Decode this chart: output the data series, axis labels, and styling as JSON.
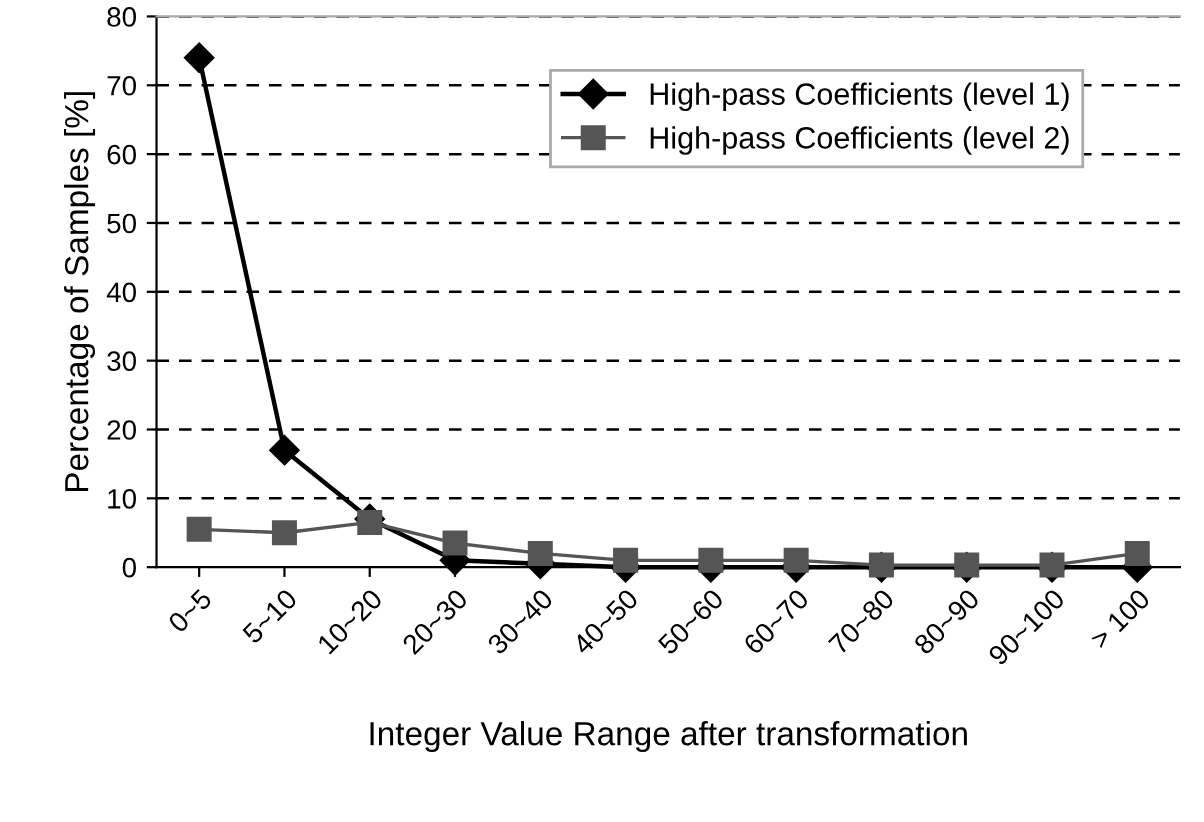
{
  "chart_data": {
    "type": "line",
    "xlabel": "Integer Value Range after transformation",
    "ylabel": "Percentage of Samples [%]",
    "categories": [
      "0~5",
      "5~10",
      "10~20",
      "20~30",
      "30~40",
      "40~50",
      "50~60",
      "60~70",
      "70~80",
      "80~90",
      "90~100",
      "> 100"
    ],
    "series": [
      {
        "name": "High-pass Coefficients (level 1)",
        "color": "#000000",
        "marker": "diamond",
        "values": [
          74,
          17,
          7,
          1,
          0.5,
          0,
          0,
          0,
          0,
          0,
          0,
          0
        ]
      },
      {
        "name": "High-pass Coefficients (level 2)",
        "color": "#555555",
        "marker": "square",
        "values": [
          5.5,
          5,
          6.5,
          3.5,
          2,
          1,
          1,
          1,
          0.3,
          0.3,
          0.3,
          2
        ]
      }
    ],
    "ylim": [
      0,
      80
    ],
    "yticks": [
      0,
      10,
      20,
      30,
      40,
      50,
      60,
      70,
      80
    ],
    "grid": "y",
    "legend": "top right",
    "line_style": "solid"
  }
}
